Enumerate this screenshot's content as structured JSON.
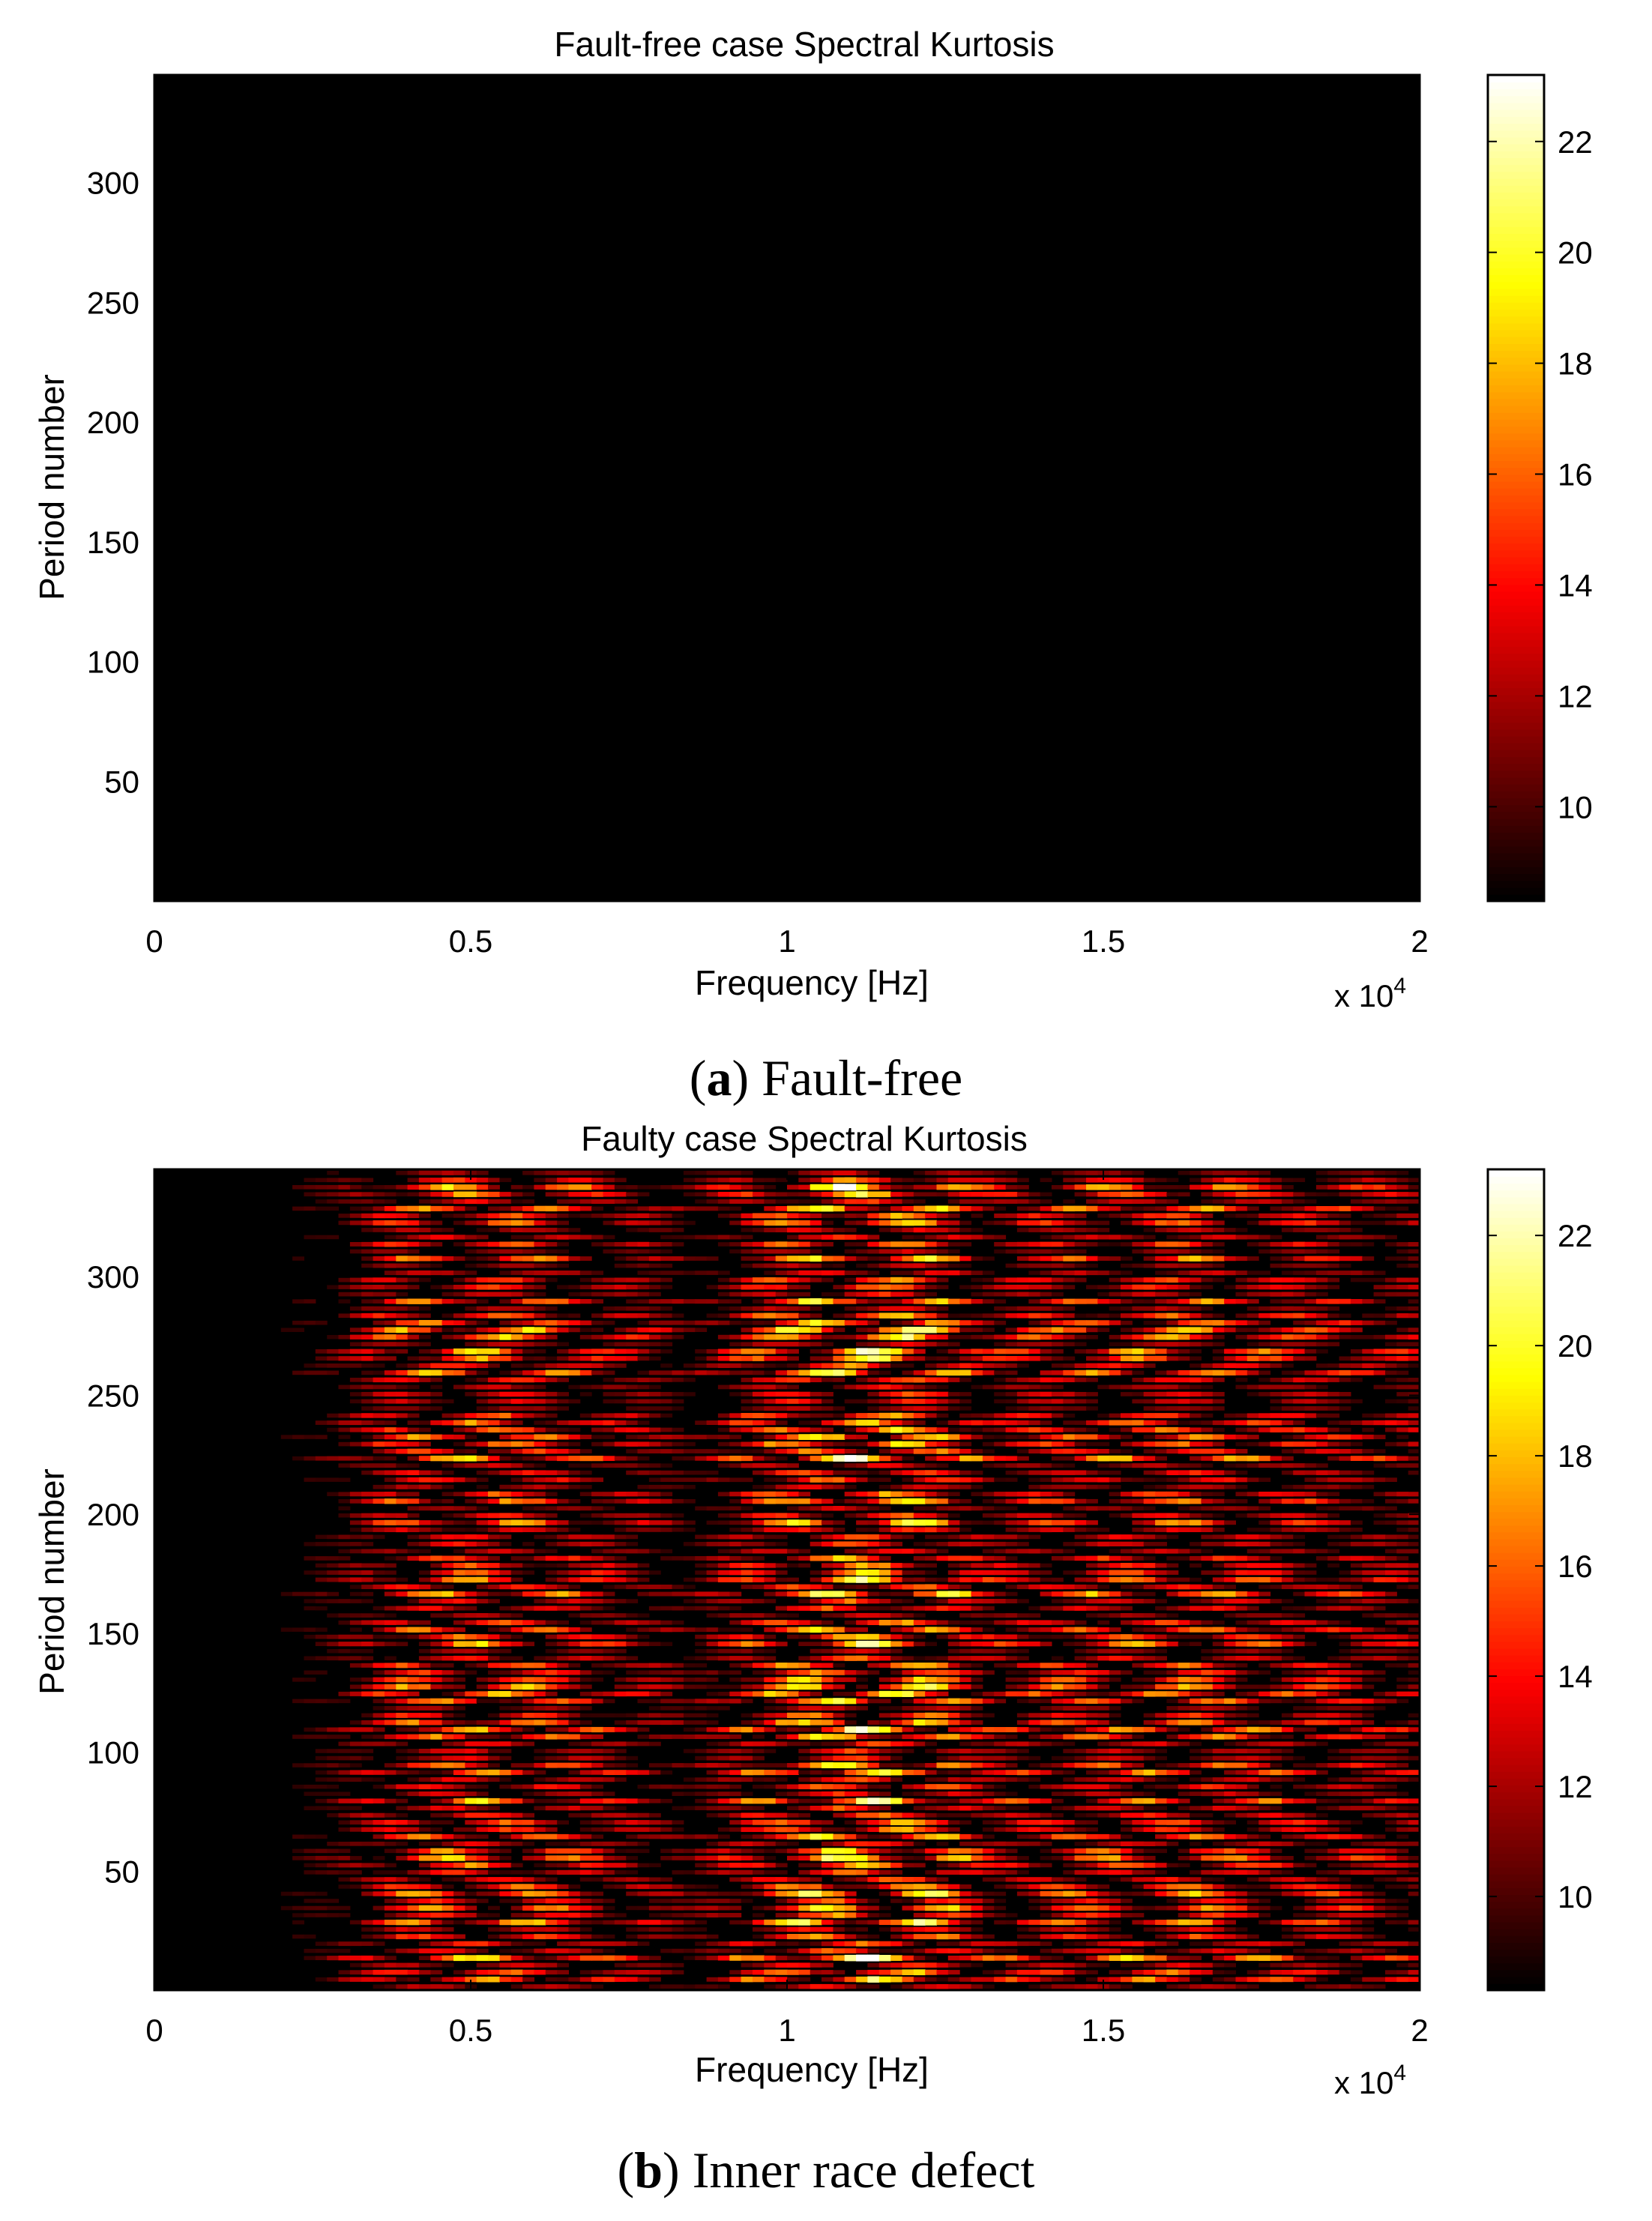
{
  "figure": {
    "panel_a": {
      "paren_open": "(",
      "letter": "a",
      "paren_close": ")",
      "text": " Fault-free"
    },
    "panel_b": {
      "paren_open": "(",
      "letter": "b",
      "paren_close": ")",
      "text": " Inner race defect"
    }
  },
  "chart_data": [
    {
      "type": "heatmap",
      "title": "Fault-free case Spectral Kurtosis",
      "xlabel": "Frequency [Hz]",
      "ylabel": "Period number",
      "x_multiplier_label": "x 10",
      "x_multiplier_exp": "4",
      "xlim": [
        0,
        20000
      ],
      "ylim": [
        0,
        345
      ],
      "x_ticks": [
        {
          "value": 0,
          "label": "0"
        },
        {
          "value": 5000,
          "label": "0.5"
        },
        {
          "value": 10000,
          "label": "1"
        },
        {
          "value": 15000,
          "label": "1.5"
        },
        {
          "value": 20000,
          "label": "2"
        }
      ],
      "y_ticks": [
        {
          "value": 50,
          "label": "50"
        },
        {
          "value": 100,
          "label": "100"
        },
        {
          "value": 150,
          "label": "150"
        },
        {
          "value": 200,
          "label": "200"
        },
        {
          "value": 250,
          "label": "250"
        },
        {
          "value": 300,
          "label": "300"
        }
      ],
      "colorbar": {
        "range": [
          8.3,
          23.2
        ],
        "colormap": "hot",
        "ticks": [
          {
            "value": 10,
            "label": "10"
          },
          {
            "value": 12,
            "label": "12"
          },
          {
            "value": 14,
            "label": "14"
          },
          {
            "value": 16,
            "label": "16"
          },
          {
            "value": 18,
            "label": "18"
          },
          {
            "value": 20,
            "label": "20"
          },
          {
            "value": 22,
            "label": "22"
          }
        ]
      },
      "field": {
        "description_values": "uniform minimum kurtosis across all frequencies and periods",
        "baseline": 8.3,
        "uniform": true
      }
    },
    {
      "type": "heatmap",
      "title": "Faulty case Spectral Kurtosis",
      "xlabel": "Frequency [Hz]",
      "ylabel": "Period number",
      "x_multiplier_label": "x 10",
      "x_multiplier_exp": "4",
      "xlim": [
        0,
        20000
      ],
      "ylim": [
        0,
        345
      ],
      "x_ticks": [
        {
          "value": 0,
          "label": "0"
        },
        {
          "value": 5000,
          "label": "0.5"
        },
        {
          "value": 10000,
          "label": "1"
        },
        {
          "value": 15000,
          "label": "1.5"
        },
        {
          "value": 20000,
          "label": "2"
        }
      ],
      "y_ticks": [
        {
          "value": 50,
          "label": "50"
        },
        {
          "value": 100,
          "label": "100"
        },
        {
          "value": 150,
          "label": "150"
        },
        {
          "value": 200,
          "label": "200"
        },
        {
          "value": 250,
          "label": "250"
        },
        {
          "value": 300,
          "label": "300"
        }
      ],
      "colorbar": {
        "range": [
          8.3,
          23.2
        ],
        "colormap": "hot",
        "ticks": [
          {
            "value": 10,
            "label": "10"
          },
          {
            "value": 12,
            "label": "12"
          },
          {
            "value": 14,
            "label": "14"
          },
          {
            "value": 16,
            "label": "16"
          },
          {
            "value": 18,
            "label": "18"
          },
          {
            "value": 20,
            "label": "20"
          },
          {
            "value": 22,
            "label": "22"
          }
        ]
      },
      "field": {
        "baseline": 8.3,
        "uniform": false,
        "n_periods": 115,
        "freq_profile": [
          {
            "f": 0,
            "level": 0.02
          },
          {
            "f": 2000,
            "level": 0.05
          },
          {
            "f": 2800,
            "level": 0.18
          },
          {
            "f": 3800,
            "level": 0.55
          },
          {
            "f": 5000,
            "level": 0.68
          },
          {
            "f": 6500,
            "level": 0.55
          },
          {
            "f": 7800,
            "level": 0.35
          },
          {
            "f": 8500,
            "level": 0.18
          },
          {
            "f": 9300,
            "level": 0.55
          },
          {
            "f": 11000,
            "level": 0.88
          },
          {
            "f": 12500,
            "level": 0.72
          },
          {
            "f": 13200,
            "level": 0.45
          },
          {
            "f": 15000,
            "level": 0.58
          },
          {
            "f": 16500,
            "level": 0.62
          },
          {
            "f": 18500,
            "level": 0.45
          },
          {
            "f": 20000,
            "level": 0.38
          }
        ],
        "peak_value": 23.2
      }
    }
  ]
}
